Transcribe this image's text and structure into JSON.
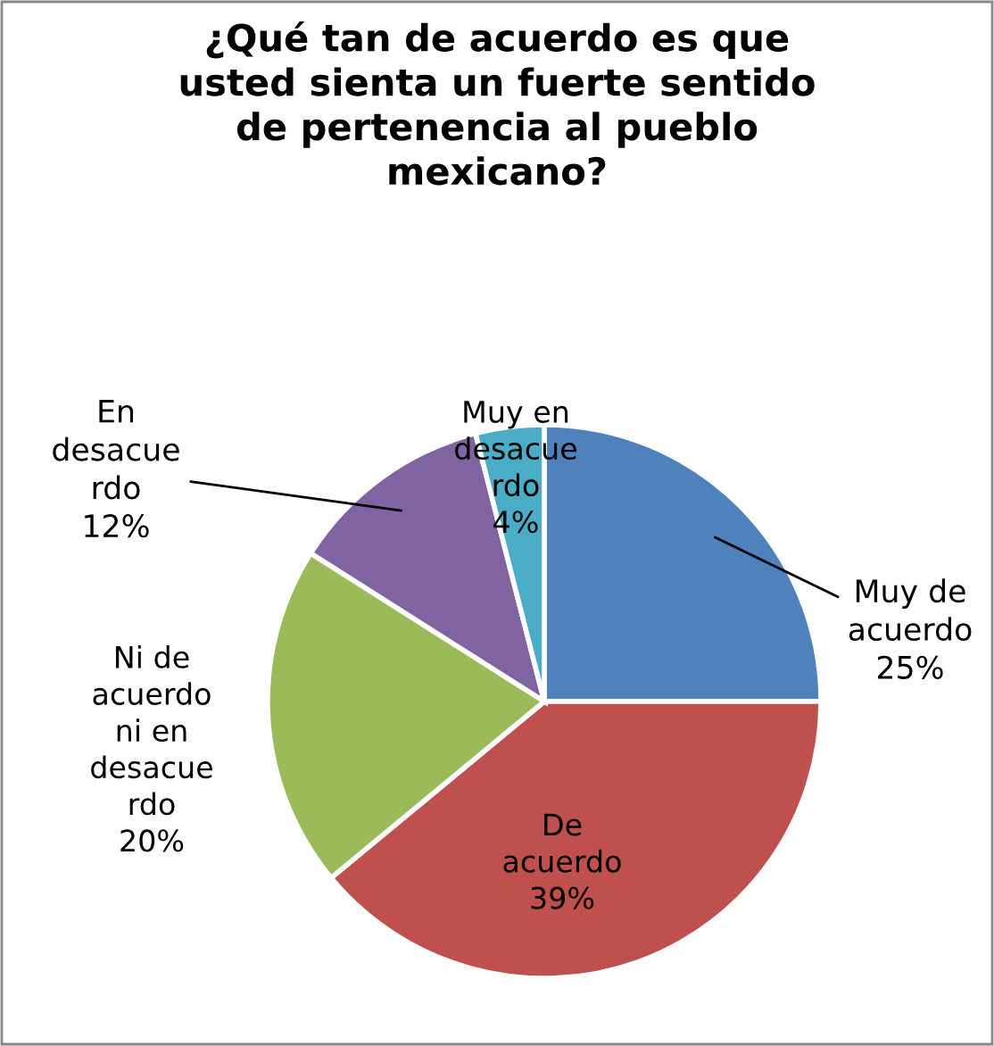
{
  "chart_data": {
    "type": "pie",
    "title": "¿Qué tan de acuerdo es que\nusted sienta un fuerte sentido\nde pertenencia al pueblo\nmexicano?",
    "categories": [
      "Muy de\nacuerdo",
      "De\nacuerdo",
      "Ni de\nacuerdo\nni en\ndesacue\nrdo",
      "En\ndesacue\nrdo",
      "Muy en\ndesacue\nrdo"
    ],
    "values": [
      25,
      39,
      20,
      12,
      4
    ],
    "value_labels": [
      "25%",
      "39%",
      "20%",
      "12%",
      "4%"
    ],
    "colors": [
      "#4f81bd",
      "#c0504d",
      "#9bbb59",
      "#8064a2",
      "#4bacc6"
    ],
    "legend": false
  }
}
